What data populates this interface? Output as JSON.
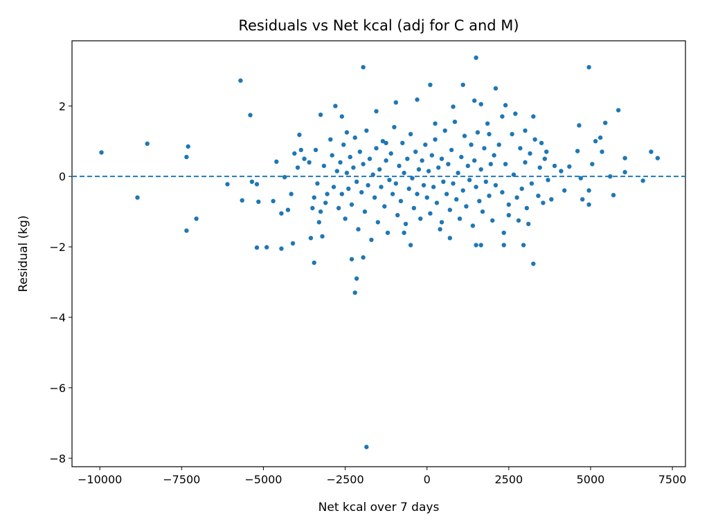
{
  "chart_data": {
    "type": "scatter",
    "title": "Residuals vs Net kcal (adj for C and M)",
    "xlabel": "Net kcal over 7 days",
    "ylabel": "Residual (kg)",
    "xlim": [
      -10850,
      7900
    ],
    "ylim": [
      -8.24,
      3.85
    ],
    "xticks": [
      -10000,
      -7500,
      -5000,
      -2500,
      0,
      2500,
      5000,
      7500
    ],
    "xtick_labels": [
      "−10000",
      "−7500",
      "−5000",
      "−2500",
      "0",
      "2500",
      "5000",
      "7500"
    ],
    "yticks": [
      -8,
      -6,
      -4,
      -2,
      0,
      2
    ],
    "ytick_labels": [
      "−8",
      "−6",
      "−4",
      "−2",
      "0",
      "2"
    ],
    "grid": false,
    "reference_line": {
      "y": 0,
      "style": "dashed"
    },
    "marker_color": "#1f77b4",
    "series": [
      {
        "points": [
          [
            -9950,
            0.68
          ],
          [
            -8850,
            -0.6
          ],
          [
            -8550,
            0.93
          ],
          [
            -7350,
            0.55
          ],
          [
            -7300,
            0.85
          ],
          [
            -7350,
            -1.54
          ],
          [
            -7050,
            -1.2
          ],
          [
            -5700,
            2.72
          ],
          [
            -5400,
            1.74
          ],
          [
            -6100,
            -0.22
          ],
          [
            -5650,
            -0.68
          ],
          [
            -5350,
            -0.15
          ],
          [
            -5200,
            -0.22
          ],
          [
            -5150,
            -0.72
          ],
          [
            -5200,
            -2.02
          ],
          [
            -4900,
            -2.01
          ],
          [
            -4600,
            0.42
          ],
          [
            -4350,
            -0.02
          ],
          [
            -4700,
            -0.7
          ],
          [
            -4450,
            -1.05
          ],
          [
            -4250,
            -0.95
          ],
          [
            -4150,
            -0.5
          ],
          [
            -4100,
            -1.9
          ],
          [
            -4450,
            -2.05
          ],
          [
            -3950,
            0.25
          ],
          [
            -3900,
            1.18
          ],
          [
            -3750,
            0.5
          ],
          [
            -4050,
            0.65
          ],
          [
            -3850,
            0.75
          ],
          [
            -3550,
            -1.75
          ],
          [
            -3450,
            -2.45
          ],
          [
            -3250,
            1.75
          ],
          [
            -3200,
            -1.7
          ],
          [
            -3100,
            -0.75
          ],
          [
            -2800,
            2.0
          ],
          [
            -2600,
            1.7
          ],
          [
            -2450,
            1.25
          ],
          [
            -2300,
            -2.35
          ],
          [
            -2150,
            -2.9
          ],
          [
            -2200,
            -3.3
          ],
          [
            -1950,
            3.1
          ],
          [
            -1950,
            -2.3
          ],
          [
            -1850,
            -7.68
          ],
          [
            -1550,
            1.85
          ],
          [
            -1250,
            0.95
          ],
          [
            -950,
            2.1
          ],
          [
            -700,
            -1.6
          ],
          [
            -500,
            -1.95
          ],
          [
            -300,
            2.18
          ],
          [
            100,
            2.6
          ],
          [
            250,
            1.5
          ],
          [
            450,
            -1.3
          ],
          [
            700,
            -1.75
          ],
          [
            800,
            1.98
          ],
          [
            1100,
            2.6
          ],
          [
            1450,
            2.15
          ],
          [
            1500,
            3.37
          ],
          [
            1500,
            -1.95
          ],
          [
            1650,
            -1.95
          ],
          [
            1650,
            2.05
          ],
          [
            1900,
            1.2
          ],
          [
            2100,
            2.5
          ],
          [
            2300,
            1.7
          ],
          [
            2350,
            -1.6
          ],
          [
            2350,
            -1.95
          ],
          [
            2400,
            2.02
          ],
          [
            2500,
            -1.1
          ],
          [
            2700,
            1.78
          ],
          [
            2800,
            -1.25
          ],
          [
            2950,
            -1.95
          ],
          [
            3000,
            1.3
          ],
          [
            3100,
            -1.35
          ],
          [
            3250,
            -2.48
          ],
          [
            3250,
            1.7
          ],
          [
            3500,
            0.95
          ],
          [
            3650,
            0.7
          ],
          [
            3900,
            0.3
          ],
          [
            4100,
            0.15
          ],
          [
            4200,
            -0.4
          ],
          [
            4350,
            0.28
          ],
          [
            4600,
            0.72
          ],
          [
            4650,
            1.45
          ],
          [
            4700,
            -0.05
          ],
          [
            4750,
            -0.65
          ],
          [
            4950,
            3.1
          ],
          [
            4950,
            -0.8
          ],
          [
            4950,
            -0.4
          ],
          [
            5050,
            0.35
          ],
          [
            5150,
            1.0
          ],
          [
            5300,
            1.1
          ],
          [
            5350,
            0.7
          ],
          [
            5450,
            1.52
          ],
          [
            5600,
            0.0
          ],
          [
            5700,
            -0.53
          ],
          [
            5850,
            1.88
          ],
          [
            6050,
            0.52
          ],
          [
            6050,
            0.12
          ],
          [
            6600,
            -0.12
          ],
          [
            6850,
            0.7
          ],
          [
            7050,
            0.52
          ],
          [
            -2900,
            0.6
          ],
          [
            -2850,
            -0.3
          ],
          [
            -2750,
            0.15
          ],
          [
            -2700,
            -0.9
          ],
          [
            -2650,
            0.4
          ],
          [
            -2600,
            -0.5
          ],
          [
            -2550,
            0.9
          ],
          [
            -2500,
            -1.2
          ],
          [
            -2450,
            0.1
          ],
          [
            -2400,
            -0.35
          ],
          [
            -2350,
            0.55
          ],
          [
            -2300,
            -0.8
          ],
          [
            -2250,
            0.25
          ],
          [
            -2200,
            1.1
          ],
          [
            -2150,
            -0.15
          ],
          [
            -2100,
            -1.5
          ],
          [
            -2050,
            0.7
          ],
          [
            -2000,
            -0.45
          ],
          [
            -1950,
            0.35
          ],
          [
            -1900,
            -1.0
          ],
          [
            -1850,
            1.3
          ],
          [
            -1800,
            -0.25
          ],
          [
            -1750,
            0.5
          ],
          [
            -1700,
            -1.8
          ],
          [
            -1650,
            0.05
          ],
          [
            -1600,
            -0.6
          ],
          [
            -1550,
            0.8
          ],
          [
            -1500,
            -1.3
          ],
          [
            -1450,
            0.2
          ],
          [
            -1400,
            -0.3
          ],
          [
            -1350,
            1.0
          ],
          [
            -1300,
            -0.85
          ],
          [
            -1250,
            0.45
          ],
          [
            -1200,
            -1.6
          ],
          [
            -1150,
            -0.1
          ],
          [
            -1100,
            0.65
          ],
          [
            -1050,
            -0.5
          ],
          [
            -1000,
            1.4
          ],
          [
            -950,
            -0.2
          ],
          [
            -900,
            -1.1
          ],
          [
            -850,
            0.3
          ],
          [
            -800,
            -0.7
          ],
          [
            -750,
            0.95
          ],
          [
            -700,
            0.1
          ],
          [
            -650,
            -1.35
          ],
          [
            -600,
            0.5
          ],
          [
            -550,
            -0.35
          ],
          [
            -500,
            1.2
          ],
          [
            -450,
            -0.05
          ],
          [
            -400,
            -0.9
          ],
          [
            -350,
            0.7
          ],
          [
            -300,
            -0.5
          ],
          [
            -250,
            0.2
          ],
          [
            -200,
            -1.2
          ],
          [
            -150,
            0.45
          ],
          [
            -100,
            -0.25
          ],
          [
            -50,
            0.9
          ],
          [
            0,
            -0.6
          ],
          [
            50,
            0.15
          ],
          [
            100,
            -1.05
          ],
          [
            150,
            0.6
          ],
          [
            200,
            -0.3
          ],
          [
            250,
            1.05
          ],
          [
            300,
            -0.75
          ],
          [
            350,
            0.25
          ],
          [
            400,
            -1.5
          ],
          [
            450,
            0.5
          ],
          [
            500,
            -0.15
          ],
          [
            550,
            1.3
          ],
          [
            600,
            -0.5
          ],
          [
            650,
            0.35
          ],
          [
            700,
            -0.95
          ],
          [
            750,
            0.75
          ],
          [
            800,
            -0.2
          ],
          [
            850,
            1.55
          ],
          [
            900,
            -0.65
          ],
          [
            950,
            0.1
          ],
          [
            1000,
            -1.2
          ],
          [
            1050,
            0.55
          ],
          [
            1100,
            -0.4
          ],
          [
            1150,
            1.15
          ],
          [
            1200,
            -0.85
          ],
          [
            1250,
            0.3
          ],
          [
            1300,
            -0.1
          ],
          [
            1350,
            0.9
          ],
          [
            1400,
            -1.4
          ],
          [
            1450,
            0.45
          ],
          [
            1500,
            -0.3
          ],
          [
            1550,
            1.25
          ],
          [
            1600,
            -0.7
          ],
          [
            1650,
            0.2
          ],
          [
            1700,
            -1.0
          ],
          [
            1750,
            0.8
          ],
          [
            1800,
            -0.15
          ],
          [
            1850,
            1.5
          ],
          [
            1900,
            -0.55
          ],
          [
            1950,
            0.35
          ],
          [
            2000,
            -1.25
          ],
          [
            2050,
            0.6
          ],
          [
            2100,
            -0.25
          ],
          [
            -3600,
            0.4
          ],
          [
            -3500,
            -0.9
          ],
          [
            -3400,
            0.75
          ],
          [
            -3350,
            -0.2
          ],
          [
            -3300,
            -1.3
          ],
          [
            -3150,
            0.3
          ],
          [
            -3050,
            -0.5
          ],
          [
            -2950,
            1.05
          ],
          [
            -3450,
            -0.6
          ],
          [
            -3250,
            -1.0
          ],
          [
            2200,
            0.9
          ],
          [
            2300,
            -0.45
          ],
          [
            2400,
            0.35
          ],
          [
            2500,
            -0.8
          ],
          [
            2600,
            1.2
          ],
          [
            2650,
            0.05
          ],
          [
            2750,
            -0.6
          ],
          [
            2850,
            0.8
          ],
          [
            2900,
            -0.35
          ],
          [
            3000,
            0.4
          ],
          [
            3050,
            -0.9
          ],
          [
            3150,
            0.65
          ],
          [
            3200,
            -0.2
          ],
          [
            3300,
            1.05
          ],
          [
            3400,
            -0.55
          ],
          [
            3450,
            0.25
          ],
          [
            3550,
            -0.75
          ],
          [
            3600,
            0.5
          ],
          [
            3700,
            -0.1
          ],
          [
            3800,
            -0.65
          ]
        ]
      }
    ]
  }
}
